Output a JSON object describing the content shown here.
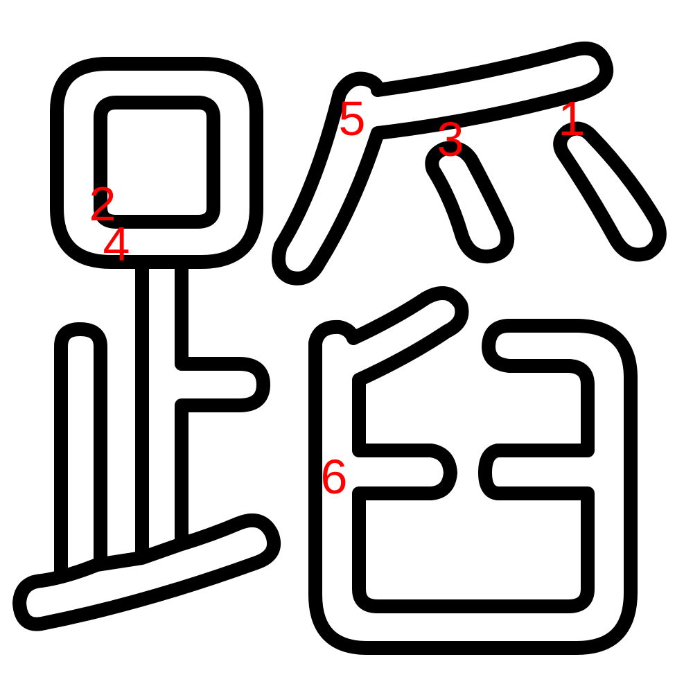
{
  "character": "踃",
  "colors": {
    "background": "#ffffff",
    "outline": "#000000",
    "stroke_numbers": "#ff0000"
  },
  "stroke_order_numbers": [
    "1",
    "2",
    "3",
    "4",
    "5",
    "6"
  ]
}
